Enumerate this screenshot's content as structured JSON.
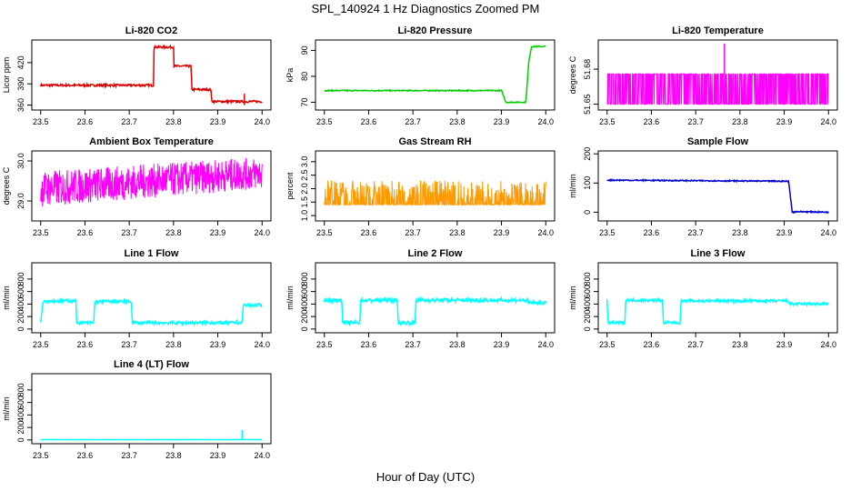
{
  "figure": {
    "title": "SPL_140924  1 Hz Diagnostics Zoomed PM",
    "xlabel": "Hour of Day (UTC)"
  },
  "chart_data": [
    {
      "type": "line",
      "title": "Li-820 CO2",
      "ylabel": "Licor ppm",
      "color": "#dd0000",
      "xlim": [
        23.48,
        24.02
      ],
      "ylim": [
        353,
        452
      ],
      "xticks": [
        23.5,
        23.6,
        23.7,
        23.8,
        23.9,
        24.0
      ],
      "xtick_labels": [
        "23.5",
        "23.6",
        "23.7",
        "23.8",
        "23.9",
        "24.0"
      ],
      "yticks": [
        360,
        390,
        420
      ],
      "ytick_labels": [
        "360",
        "390",
        "420"
      ],
      "x": [
        23.5,
        23.755,
        23.756,
        23.8,
        23.801,
        23.84,
        23.841,
        23.885,
        23.886,
        23.96,
        23.961,
        24.0
      ],
      "y": [
        388,
        388,
        442,
        442,
        415,
        415,
        382,
        382,
        365,
        365,
        365,
        365
      ],
      "noise": 1.5,
      "spikes": [
        {
          "x": 23.96,
          "y_from": 360,
          "y_to": 376
        }
      ]
    },
    {
      "type": "line",
      "title": "Li-820 Pressure",
      "ylabel": "kPa",
      "color": "#00cc00",
      "xlim": [
        23.48,
        24.02
      ],
      "ylim": [
        67,
        94
      ],
      "xticks": [
        23.5,
        23.6,
        23.7,
        23.8,
        23.9,
        24.0
      ],
      "xtick_labels": [
        "23.5",
        "23.6",
        "23.7",
        "23.8",
        "23.9",
        "24.0"
      ],
      "yticks": [
        70,
        80,
        90
      ],
      "ytick_labels": [
        "70",
        "80",
        "90"
      ],
      "x": [
        23.5,
        23.9,
        23.91,
        23.955,
        23.962,
        23.968,
        24.0
      ],
      "y": [
        74.5,
        74.5,
        70,
        70,
        86,
        91.5,
        91.5
      ],
      "noise": 0.2
    },
    {
      "type": "line",
      "title": "Li-820 Temperature",
      "ylabel": "degrees C",
      "color": "#ff00ff",
      "xlim": [
        23.48,
        24.02
      ],
      "ylim": [
        51.645,
        51.705
      ],
      "xticks": [
        23.5,
        23.6,
        23.7,
        23.8,
        23.9,
        24.0
      ],
      "xtick_labels": [
        "23.5",
        "23.6",
        "23.7",
        "23.8",
        "23.9",
        "24.0"
      ],
      "yticks": [
        51.65,
        51.68
      ],
      "ytick_labels": [
        "51.65",
        "51.68"
      ],
      "x": [
        23.5,
        24.0
      ],
      "y_band": [
        51.65,
        51.676
      ],
      "spikes": [
        {
          "x": 23.765,
          "y_from": 51.676,
          "y_to": 51.702
        }
      ]
    },
    {
      "type": "line",
      "title": "Ambient Box Temperature",
      "ylabel": "degrees C",
      "color": "#ff00ff",
      "xlim": [
        23.48,
        24.02
      ],
      "ylim": [
        28.5,
        30.25
      ],
      "xticks": [
        23.5,
        23.6,
        23.7,
        23.8,
        23.9,
        24.0
      ],
      "xtick_labels": [
        "23.5",
        "23.6",
        "23.7",
        "23.8",
        "23.9",
        "24.0"
      ],
      "yticks": [
        29.0,
        30.0
      ],
      "ytick_labels": [
        "29.0",
        "30.0"
      ],
      "x": [
        23.5,
        24.0
      ],
      "y_band_start": [
        28.85,
        29.75
      ],
      "y_band_end": [
        29.3,
        30.1
      ]
    },
    {
      "type": "line",
      "title": "Gas Stream RH",
      "ylabel": "percent",
      "color": "#ff9900",
      "xlim": [
        23.48,
        24.02
      ],
      "ylim": [
        0.8,
        3.4
      ],
      "xticks": [
        23.5,
        23.6,
        23.7,
        23.8,
        23.9,
        24.0
      ],
      "xtick_labels": [
        "23.5",
        "23.6",
        "23.7",
        "23.8",
        "23.9",
        "24.0"
      ],
      "yticks": [
        1.0,
        1.5,
        2.0,
        2.5,
        3.0
      ],
      "ytick_labels": [
        "1.0",
        "1.5",
        "2.0",
        "2.5",
        "3.0"
      ],
      "x": [
        23.5,
        24.0
      ],
      "y_band": [
        1.4,
        2.3
      ]
    },
    {
      "type": "line",
      "title": "Sample Flow",
      "ylabel": "ml/min",
      "color": "#0000cc",
      "xlim": [
        23.48,
        24.02
      ],
      "ylim": [
        -30,
        210
      ],
      "xticks": [
        23.5,
        23.6,
        23.7,
        23.8,
        23.9,
        24.0
      ],
      "xtick_labels": [
        "23.5",
        "23.6",
        "23.7",
        "23.8",
        "23.9",
        "24.0"
      ],
      "yticks": [
        0,
        100,
        200
      ],
      "ytick_labels": [
        "0",
        "100",
        "200"
      ],
      "x": [
        23.5,
        23.91,
        23.918,
        23.93,
        24.0
      ],
      "y": [
        110,
        106,
        0,
        2,
        0
      ],
      "noise": 2
    },
    {
      "type": "line",
      "title": "Line 1 Flow",
      "ylabel": "ml/min",
      "color": "#00ffff",
      "xlim": [
        23.48,
        24.02
      ],
      "ylim": [
        -60,
        1060
      ],
      "xticks": [
        23.5,
        23.6,
        23.7,
        23.8,
        23.9,
        24.0
      ],
      "xtick_labels": [
        "23.5",
        "23.6",
        "23.7",
        "23.8",
        "23.9",
        "24.0"
      ],
      "yticks": [
        0,
        200,
        400,
        600,
        800
      ],
      "ytick_labels": [
        "0",
        "200",
        "400",
        "600",
        "800"
      ],
      "x": [
        23.5,
        23.505,
        23.58,
        23.581,
        23.62,
        23.622,
        23.705,
        23.707,
        23.955,
        23.957,
        24.0
      ],
      "y": [
        100,
        450,
        450,
        100,
        100,
        440,
        440,
        100,
        100,
        380,
        380
      ],
      "noise": 25
    },
    {
      "type": "line",
      "title": "Line 2 Flow",
      "ylabel": "ml/min",
      "color": "#00ffff",
      "xlim": [
        23.48,
        24.02
      ],
      "ylim": [
        -60,
        1060
      ],
      "xticks": [
        23.5,
        23.6,
        23.7,
        23.8,
        23.9,
        24.0
      ],
      "xtick_labels": [
        "23.5",
        "23.6",
        "23.7",
        "23.8",
        "23.9",
        "24.0"
      ],
      "yticks": [
        0,
        200,
        400,
        600,
        800
      ],
      "ytick_labels": [
        "0",
        "200",
        "400",
        "600",
        "800"
      ],
      "x": [
        23.5,
        23.54,
        23.541,
        23.58,
        23.582,
        23.665,
        23.667,
        23.705,
        23.707,
        23.958,
        23.96,
        24.0
      ],
      "y": [
        460,
        460,
        100,
        100,
        460,
        460,
        100,
        100,
        460,
        460,
        420,
        420
      ],
      "noise": 30
    },
    {
      "type": "line",
      "title": "Line 3 Flow",
      "ylabel": "ml/min",
      "color": "#00ffff",
      "xlim": [
        23.48,
        24.02
      ],
      "ylim": [
        -60,
        1060
      ],
      "xticks": [
        23.5,
        23.6,
        23.7,
        23.8,
        23.9,
        24.0
      ],
      "xtick_labels": [
        "23.5",
        "23.6",
        "23.7",
        "23.8",
        "23.9",
        "24.0"
      ],
      "yticks": [
        0,
        200,
        400,
        600,
        800
      ],
      "ytick_labels": [
        "0",
        "200",
        "400",
        "600",
        "800"
      ],
      "x": [
        23.5,
        23.502,
        23.54,
        23.542,
        23.625,
        23.627,
        23.665,
        23.667,
        23.91,
        23.912,
        24.0
      ],
      "y": [
        460,
        100,
        100,
        460,
        460,
        100,
        100,
        450,
        450,
        400,
        400
      ],
      "noise": 22
    },
    {
      "type": "line",
      "title": "Line 4 (LT) Flow",
      "ylabel": "ml/min",
      "color": "#00ffff",
      "xlim": [
        23.48,
        24.02
      ],
      "ylim": [
        -60,
        1060
      ],
      "xticks": [
        23.5,
        23.6,
        23.7,
        23.8,
        23.9,
        24.0
      ],
      "xtick_labels": [
        "23.5",
        "23.6",
        "23.7",
        "23.8",
        "23.9",
        "24.0"
      ],
      "yticks": [
        0,
        200,
        400,
        600,
        800
      ],
      "ytick_labels": [
        "0",
        "200",
        "400",
        "600",
        "800"
      ],
      "x": [
        23.5,
        24.0
      ],
      "y": [
        5,
        5
      ],
      "noise": 2,
      "spikes": [
        {
          "x": 23.955,
          "y_from": 5,
          "y_to": 160
        }
      ]
    }
  ]
}
